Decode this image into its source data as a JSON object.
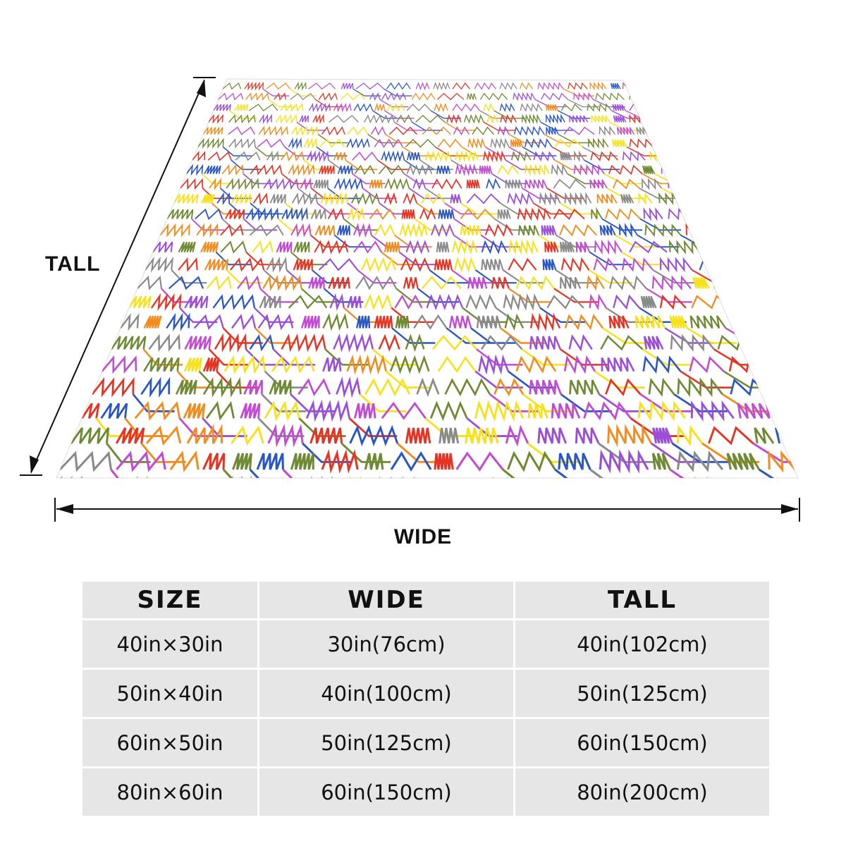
{
  "dimension_labels": {
    "tall": "TALL",
    "wide": "WIDE"
  },
  "blanket": {
    "pattern": "multicolor zigzag line pattern on white",
    "colors": [
      "#e63323",
      "#f7e11a",
      "#2b57c4",
      "#9b4fd6",
      "#6f8a34",
      "#f28c1e",
      "#8a8a8a",
      "#c24bd3"
    ]
  },
  "size_table": {
    "headers": [
      "SIZE",
      "WIDE",
      "TALL"
    ],
    "rows": [
      [
        "40in×30in",
        "30in(76cm)",
        "40in(102cm)"
      ],
      [
        "50in×40in",
        "40in(100cm)",
        "50in(125cm)"
      ],
      [
        "60in×50in",
        "50in(125cm)",
        "60in(150cm)"
      ],
      [
        "80in×60in",
        "60in(150cm)",
        "80in(200cm)"
      ]
    ]
  }
}
